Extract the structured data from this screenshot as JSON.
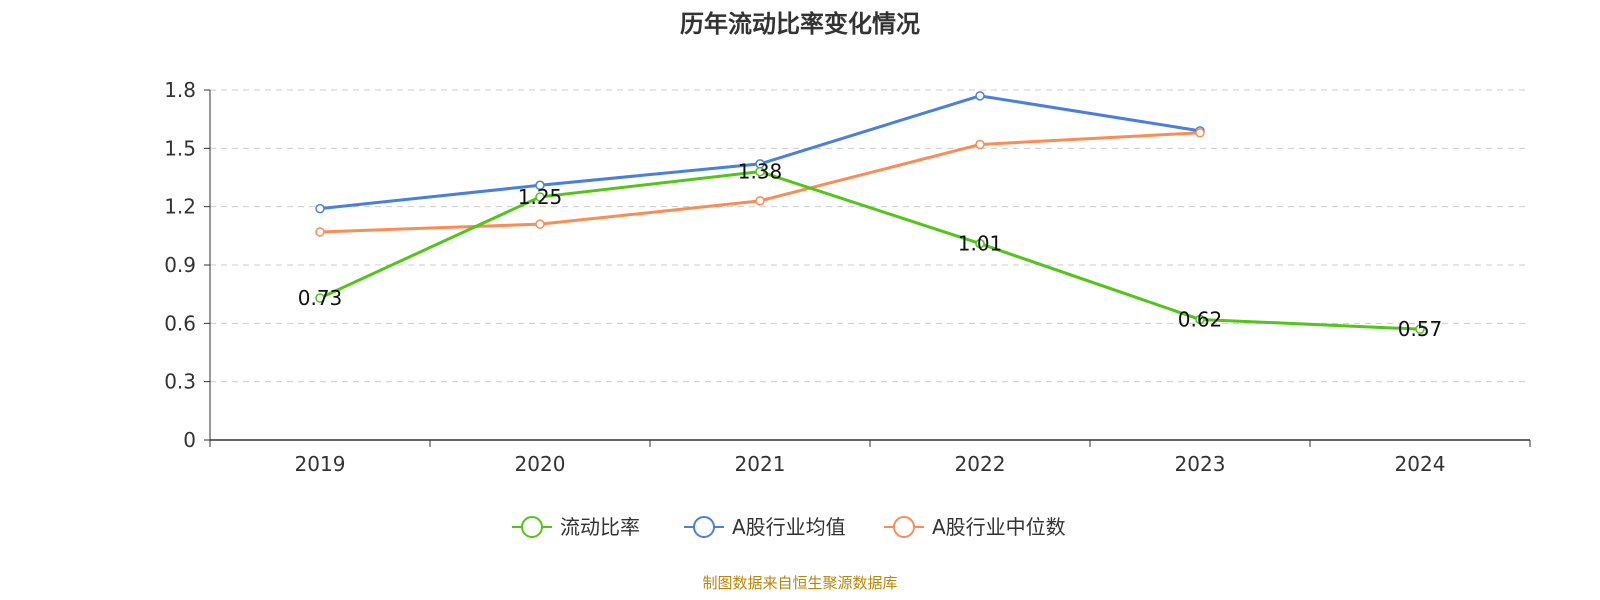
{
  "chart_data": {
    "type": "line",
    "title": "历年流动比率变化情况",
    "categories": [
      "2019",
      "2020",
      "2021",
      "2022",
      "2023",
      "2024"
    ],
    "ylim": [
      0,
      1.8
    ],
    "yticks": [
      "0",
      "0.3",
      "0.6",
      "0.9",
      "1.2",
      "1.5",
      "1.8"
    ],
    "grid": true,
    "legend_position": "bottom",
    "series": [
      {
        "name": "流动比率",
        "color": "#52c41a",
        "values": [
          0.73,
          1.25,
          1.38,
          1.01,
          0.62,
          0.57
        ],
        "labels": [
          "0.73",
          "1.25",
          "1.38",
          "1.01",
          "0.62",
          "0.57"
        ]
      },
      {
        "name": "A股行业均值",
        "color": "#4a7fdb",
        "values": [
          1.19,
          1.31,
          1.42,
          1.77,
          1.59,
          null
        ]
      },
      {
        "name": "A股行业中位数",
        "color": "#fa8c55",
        "values": [
          1.07,
          1.11,
          1.23,
          1.52,
          1.58,
          null
        ]
      }
    ]
  },
  "source_note": "制图数据来自恒生聚源数据库"
}
